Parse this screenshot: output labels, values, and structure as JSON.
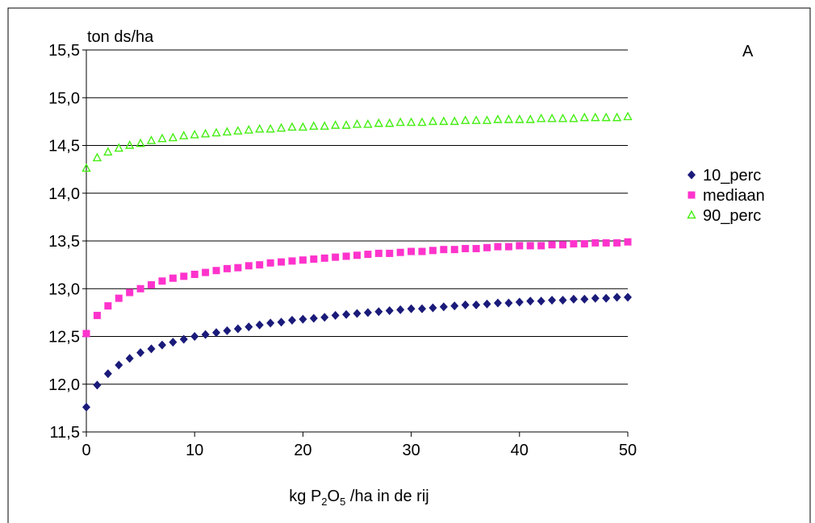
{
  "chart_data": {
    "type": "scatter",
    "ylabel": "ton ds/ha",
    "xlabel_parts": [
      "kg P",
      "2",
      "O",
      "5",
      " /ha in de rij"
    ],
    "panel_label": "A",
    "xlim": [
      0,
      50
    ],
    "ylim": [
      11.5,
      15.5
    ],
    "x_ticks": [
      0,
      10,
      20,
      30,
      40,
      50
    ],
    "x_tick_labels": [
      "0",
      "10",
      "20",
      "30",
      "40",
      "50"
    ],
    "y_ticks": [
      11.5,
      12.0,
      12.5,
      13.0,
      13.5,
      14.0,
      14.5,
      15.0,
      15.5
    ],
    "y_tick_labels": [
      "11,5",
      "12,0",
      "12,5",
      "13,0",
      "13,5",
      "14,0",
      "14,5",
      "15,0",
      "15,5"
    ],
    "grid": "horizontal",
    "legend_position": "right",
    "x": [
      0,
      1,
      2,
      3,
      4,
      5,
      6,
      7,
      8,
      9,
      10,
      11,
      12,
      13,
      14,
      15,
      16,
      17,
      18,
      19,
      20,
      21,
      22,
      23,
      24,
      25,
      26,
      27,
      28,
      29,
      30,
      31,
      32,
      33,
      34,
      35,
      36,
      37,
      38,
      39,
      40,
      41,
      42,
      43,
      44,
      45,
      46,
      47,
      48,
      49,
      50
    ],
    "series": [
      {
        "name": "10_perc",
        "marker": "diamond",
        "color": "#1a1a7a",
        "values": [
          11.76,
          11.99,
          12.11,
          12.2,
          12.27,
          12.33,
          12.37,
          12.41,
          12.44,
          12.47,
          12.5,
          12.52,
          12.54,
          12.56,
          12.58,
          12.6,
          12.62,
          12.64,
          12.65,
          12.67,
          12.68,
          12.69,
          12.7,
          12.72,
          12.73,
          12.74,
          12.75,
          12.76,
          12.77,
          12.78,
          12.79,
          12.79,
          12.8,
          12.81,
          12.82,
          12.83,
          12.83,
          12.84,
          12.85,
          12.85,
          12.86,
          12.87,
          12.87,
          12.88,
          12.88,
          12.89,
          12.89,
          12.9,
          12.9,
          12.91,
          12.91
        ]
      },
      {
        "name": "mediaan",
        "marker": "square",
        "color": "#ff33cc",
        "values": [
          12.53,
          12.72,
          12.82,
          12.9,
          12.96,
          13.0,
          13.04,
          13.08,
          13.11,
          13.13,
          13.15,
          13.17,
          13.19,
          13.21,
          13.22,
          13.24,
          13.25,
          13.27,
          13.28,
          13.29,
          13.3,
          13.31,
          13.32,
          13.33,
          13.34,
          13.35,
          13.36,
          13.37,
          13.37,
          13.38,
          13.39,
          13.39,
          13.4,
          13.41,
          13.41,
          13.42,
          13.42,
          13.43,
          13.44,
          13.44,
          13.45,
          13.45,
          13.45,
          13.46,
          13.46,
          13.47,
          13.47,
          13.48,
          13.48,
          13.48,
          13.49
        ]
      },
      {
        "name": "90_perc",
        "marker": "triangle",
        "color": "#44ee11",
        "values": [
          14.26,
          14.37,
          14.43,
          14.47,
          14.5,
          14.52,
          14.55,
          14.57,
          14.58,
          14.6,
          14.61,
          14.62,
          14.63,
          14.64,
          14.65,
          14.66,
          14.67,
          14.67,
          14.68,
          14.69,
          14.69,
          14.7,
          14.7,
          14.71,
          14.71,
          14.72,
          14.72,
          14.73,
          14.73,
          14.74,
          14.74,
          14.74,
          14.75,
          14.75,
          14.75,
          14.76,
          14.76,
          14.76,
          14.77,
          14.77,
          14.77,
          14.77,
          14.78,
          14.78,
          14.78,
          14.78,
          14.79,
          14.79,
          14.79,
          14.79,
          14.8
        ]
      }
    ]
  }
}
